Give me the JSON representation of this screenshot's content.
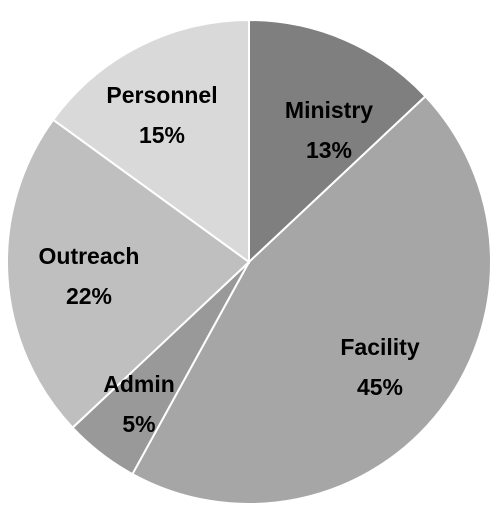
{
  "chart_data": {
    "type": "pie",
    "slices": [
      {
        "label": "Ministry",
        "value": 13,
        "pct_label": "13%",
        "color": "#7f7f7f"
      },
      {
        "label": "Facility",
        "value": 45,
        "pct_label": "45%",
        "color": "#a6a6a6"
      },
      {
        "label": "Admin",
        "value": 5,
        "pct_label": "5%",
        "color": "#999999"
      },
      {
        "label": "Outreach",
        "value": 22,
        "pct_label": "22%",
        "color": "#bfbfbf"
      },
      {
        "label": "Personnel",
        "value": 15,
        "pct_label": "15%",
        "color": "#d9d9d9"
      }
    ],
    "start_angle_deg": 0,
    "direction": "clockwise",
    "legend": "none"
  }
}
